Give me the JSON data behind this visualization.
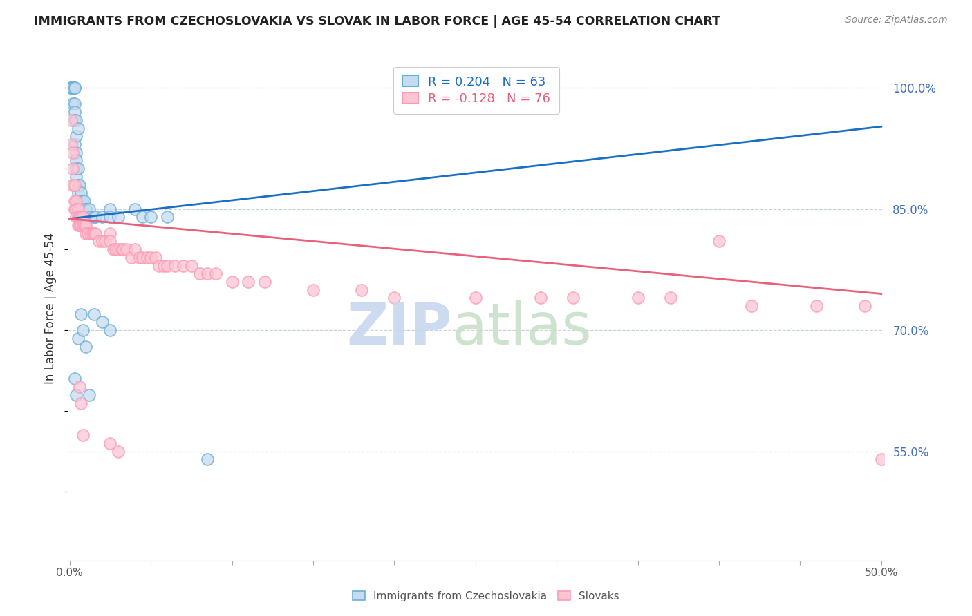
{
  "title": "IMMIGRANTS FROM CZECHOSLOVAKIA VS SLOVAK IN LABOR FORCE | AGE 45-54 CORRELATION CHART",
  "source": "Source: ZipAtlas.com",
  "ylabel": "In Labor Force | Age 45-54",
  "ytick_labels": [
    "100.0%",
    "85.0%",
    "70.0%",
    "55.0%"
  ],
  "ytick_values": [
    1.0,
    0.85,
    0.7,
    0.55
  ],
  "ylim": [
    0.415,
    1.04
  ],
  "xlim": [
    -0.001,
    0.502
  ],
  "blue_R": 0.204,
  "blue_N": 63,
  "pink_R": -0.128,
  "pink_N": 76,
  "legend_label_blue": "Immigrants from Czechoslovakia",
  "legend_label_pink": "Slovaks",
  "blue_face_color": "#c6dbef",
  "blue_edge_color": "#6baed6",
  "pink_face_color": "#fcc5d4",
  "pink_edge_color": "#fb9ab4",
  "blue_line_color": "#1a6fc4",
  "pink_line_color": "#e8607a",
  "blue_legend_text_color": "#1a6fc4",
  "pink_legend_text_color": "#e8607a",
  "right_tick_color": "#4472c4",
  "watermark_zip_color": "#c8d8f0",
  "watermark_atlas_color": "#c8e0c8",
  "blue_x": [
    0.001,
    0.001,
    0.001,
    0.001,
    0.002,
    0.002,
    0.002,
    0.002,
    0.002,
    0.003,
    0.003,
    0.003,
    0.003,
    0.003,
    0.003,
    0.004,
    0.004,
    0.004,
    0.004,
    0.004,
    0.004,
    0.005,
    0.005,
    0.005,
    0.005,
    0.005,
    0.006,
    0.006,
    0.006,
    0.007,
    0.007,
    0.007,
    0.008,
    0.008,
    0.009,
    0.009,
    0.01,
    0.01,
    0.01,
    0.011,
    0.012,
    0.013,
    0.015,
    0.016,
    0.02,
    0.025,
    0.025,
    0.03,
    0.04,
    0.045,
    0.05,
    0.06,
    0.007,
    0.015,
    0.02,
    0.025,
    0.005,
    0.008,
    0.01,
    0.003,
    0.004,
    0.012,
    0.085
  ],
  "blue_y": [
    1.0,
    1.0,
    1.0,
    1.0,
    1.0,
    1.0,
    1.0,
    1.0,
    0.98,
    1.0,
    1.0,
    0.98,
    0.97,
    0.96,
    0.93,
    0.96,
    0.94,
    0.92,
    0.91,
    0.9,
    0.89,
    0.95,
    0.9,
    0.88,
    0.87,
    0.86,
    0.88,
    0.86,
    0.85,
    0.87,
    0.86,
    0.85,
    0.86,
    0.85,
    0.86,
    0.85,
    0.85,
    0.85,
    0.84,
    0.84,
    0.85,
    0.84,
    0.84,
    0.84,
    0.84,
    0.85,
    0.84,
    0.84,
    0.85,
    0.84,
    0.84,
    0.84,
    0.72,
    0.72,
    0.71,
    0.7,
    0.69,
    0.7,
    0.68,
    0.64,
    0.62,
    0.62,
    0.54
  ],
  "pink_x": [
    0.001,
    0.001,
    0.002,
    0.002,
    0.002,
    0.003,
    0.003,
    0.003,
    0.004,
    0.004,
    0.004,
    0.005,
    0.005,
    0.005,
    0.006,
    0.006,
    0.007,
    0.007,
    0.008,
    0.008,
    0.009,
    0.01,
    0.01,
    0.011,
    0.013,
    0.014,
    0.015,
    0.016,
    0.018,
    0.02,
    0.022,
    0.025,
    0.025,
    0.027,
    0.028,
    0.03,
    0.032,
    0.033,
    0.035,
    0.038,
    0.04,
    0.043,
    0.045,
    0.048,
    0.05,
    0.053,
    0.055,
    0.058,
    0.06,
    0.065,
    0.07,
    0.075,
    0.08,
    0.085,
    0.09,
    0.1,
    0.11,
    0.12,
    0.15,
    0.18,
    0.2,
    0.25,
    0.29,
    0.31,
    0.35,
    0.37,
    0.42,
    0.46,
    0.49,
    0.006,
    0.007,
    0.008,
    0.025,
    0.03,
    0.4,
    0.5
  ],
  "pink_y": [
    0.96,
    0.93,
    0.92,
    0.9,
    0.88,
    0.88,
    0.86,
    0.85,
    0.86,
    0.85,
    0.84,
    0.85,
    0.84,
    0.83,
    0.84,
    0.83,
    0.84,
    0.83,
    0.84,
    0.83,
    0.83,
    0.83,
    0.82,
    0.82,
    0.82,
    0.82,
    0.82,
    0.82,
    0.81,
    0.81,
    0.81,
    0.82,
    0.81,
    0.8,
    0.8,
    0.8,
    0.8,
    0.8,
    0.8,
    0.79,
    0.8,
    0.79,
    0.79,
    0.79,
    0.79,
    0.79,
    0.78,
    0.78,
    0.78,
    0.78,
    0.78,
    0.78,
    0.77,
    0.77,
    0.77,
    0.76,
    0.76,
    0.76,
    0.75,
    0.75,
    0.74,
    0.74,
    0.74,
    0.74,
    0.74,
    0.74,
    0.73,
    0.73,
    0.73,
    0.63,
    0.61,
    0.57,
    0.56,
    0.55,
    0.81,
    0.54
  ],
  "blue_trend_x": [
    0.0,
    0.5
  ],
  "blue_trend_y": [
    0.838,
    0.952
  ],
  "pink_trend_x": [
    0.0,
    0.5
  ],
  "pink_trend_y": [
    0.838,
    0.745
  ],
  "xtick_positions": [
    0.0,
    0.05,
    0.1,
    0.15,
    0.2,
    0.25,
    0.3,
    0.35,
    0.4,
    0.45,
    0.5
  ],
  "grid_color": "#c8d0dc",
  "spine_color": "#aaaaaa"
}
